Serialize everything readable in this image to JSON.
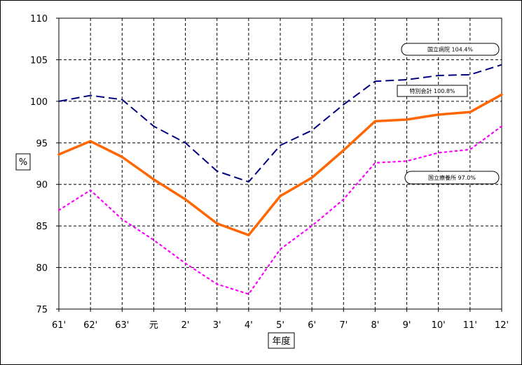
{
  "chart_data": {
    "type": "line",
    "title": "",
    "xlabel": "年度",
    "ylabel": "%",
    "categories": [
      "61'",
      "62'",
      "63'",
      "元",
      "2'",
      "3'",
      "4'",
      "5'",
      "6'",
      "7'",
      "8'",
      "9'",
      "10'",
      "11'",
      "12'"
    ],
    "ylim": [
      75,
      110
    ],
    "ytick_step": 5,
    "grid": true,
    "legend": "none",
    "series": [
      {
        "name": "国立病院",
        "color": "#000080",
        "style": "dashed",
        "values": [
          100.0,
          100.7,
          100.2,
          97.0,
          95.0,
          91.6,
          90.3,
          94.7,
          96.5,
          99.6,
          102.4,
          102.6,
          103.1,
          103.2,
          104.4
        ]
      },
      {
        "name": "特別会計",
        "color": "#FF6600",
        "style": "solid",
        "values": [
          93.6,
          95.2,
          93.3,
          90.6,
          88.2,
          85.3,
          83.9,
          88.6,
          90.8,
          94.1,
          97.6,
          97.8,
          98.4,
          98.7,
          100.8
        ]
      },
      {
        "name": "国立療養所",
        "color": "#FF00FF",
        "style": "dotted",
        "values": [
          86.9,
          89.3,
          85.8,
          83.3,
          80.5,
          78.0,
          76.8,
          82.2,
          85.0,
          88.2,
          92.6,
          92.8,
          93.8,
          94.2,
          97.0
        ]
      }
    ],
    "callouts": [
      {
        "series": "国立病院",
        "text": "国立病院 104.4%"
      },
      {
        "series": "特別会計",
        "text": "特別会計 100.8%"
      },
      {
        "series": "国立療養所",
        "text": "国立療養所 97.0%"
      }
    ]
  }
}
